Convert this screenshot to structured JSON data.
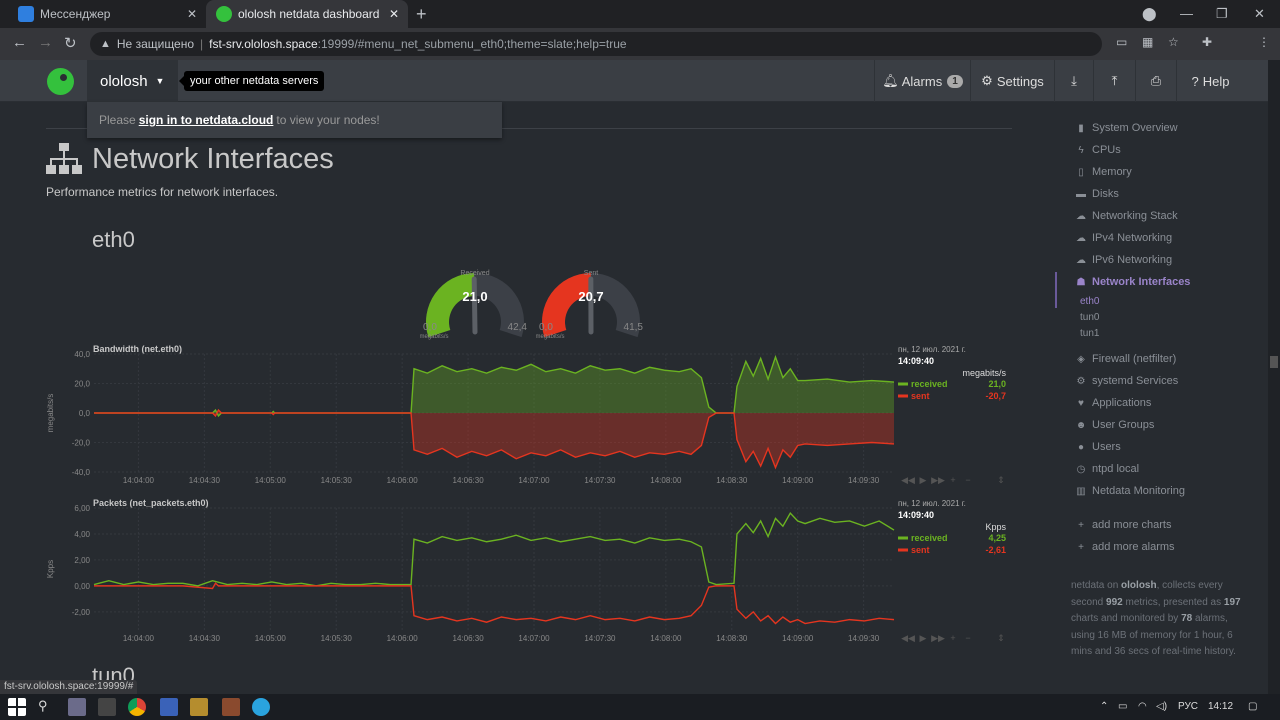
{
  "browser": {
    "tabs": [
      {
        "title": "Мессенджер",
        "active": false,
        "icon": "messenger-icon"
      },
      {
        "title": "ololosh netdata dashboard",
        "active": true,
        "icon": "netdata-icon"
      }
    ],
    "address": {
      "security_label": "Не защищено",
      "host": "fst-srv.ololosh.space",
      "path": ":19999/#menu_net_submenu_eth0;theme=slate;help=true"
    },
    "status_url": "fst-srv.ololosh.space:19999/#"
  },
  "netdata": {
    "hostname": "ololosh",
    "servers_tooltip": "your other netdata servers",
    "nav": {
      "alarms_label": "Alarms",
      "alarms_count": "1",
      "settings_label": "Settings",
      "help_label": "Help"
    },
    "cloud": {
      "prefix": "Please",
      "link": "sign in to netdata.cloud",
      "suffix": "to view your nodes!"
    },
    "section": {
      "title": "Network Interfaces",
      "description": "Performance metrics for network interfaces.",
      "subsection": "eth0",
      "next_subsection": "tun0"
    },
    "gauges": [
      {
        "label": "Received",
        "value": "21,0",
        "min": "0,0",
        "max": "42,4",
        "units": "megabits/s",
        "fraction": 0.495,
        "color": "#6bb321"
      },
      {
        "label": "Sent",
        "value": "20,7",
        "min": "0,0",
        "max": "41,5",
        "units": "megabits/s",
        "fraction": 0.499,
        "color": "#e5351f"
      }
    ],
    "sidebar": {
      "items": [
        {
          "label": "System Overview",
          "icon": "bookmark-icon"
        },
        {
          "label": "CPUs",
          "icon": "bolt-icon"
        },
        {
          "label": "Memory",
          "icon": "memory-icon"
        },
        {
          "label": "Disks",
          "icon": "hdd-icon"
        },
        {
          "label": "Networking Stack",
          "icon": "cloud-icon"
        },
        {
          "label": "IPv4 Networking",
          "icon": "cloud-icon"
        },
        {
          "label": "IPv6 Networking",
          "icon": "cloud-icon"
        },
        {
          "label": "Network Interfaces",
          "icon": "sitemap-icon",
          "active": true
        },
        {
          "label": "Firewall (netfilter)",
          "icon": "shield-icon"
        },
        {
          "label": "systemd Services",
          "icon": "cogs-icon"
        },
        {
          "label": "Applications",
          "icon": "heartbeat-icon"
        },
        {
          "label": "User Groups",
          "icon": "users-icon"
        },
        {
          "label": "Users",
          "icon": "user-icon"
        },
        {
          "label": "ntpd local",
          "icon": "clock-icon"
        },
        {
          "label": "Netdata Monitoring",
          "icon": "bar-chart-icon"
        },
        {
          "label": "add more charts",
          "icon": "plus-icon"
        },
        {
          "label": "add more alarms",
          "icon": "plus-icon"
        }
      ],
      "subitems": [
        {
          "label": "eth0",
          "active": true
        },
        {
          "label": "tun0",
          "active": false
        },
        {
          "label": "tun1",
          "active": false
        }
      ],
      "footer": {
        "t1": "netdata on",
        "host": "ololosh",
        "t2": ", collects every second",
        "metrics": "992",
        "t3": "metrics, presented as",
        "charts": "197",
        "t4": "charts and monitored by",
        "alarms": "78",
        "t5": "alarms, using 16 MB of memory for 1 hour, 6 mins and 36 secs of real-time history."
      }
    }
  },
  "taskbar": {
    "language": "РУС",
    "time": "14:12"
  },
  "chart_data": [
    {
      "type": "area",
      "title": "Bandwidth (net.eth0)",
      "ylabel": "megabits/s",
      "units": "megabits/s",
      "ylim": [
        -40,
        40
      ],
      "yticks": [
        "40,0",
        "20,0",
        "0,0",
        "-20,0",
        "-40,0"
      ],
      "xticks": [
        "14:04:00",
        "14:04:30",
        "14:05:00",
        "14:05:30",
        "14:06:00",
        "14:06:30",
        "14:07:00",
        "14:07:30",
        "14:08:00",
        "14:08:30",
        "14:09:00",
        "14:09:30"
      ],
      "date_label": "пн, 12 июл. 2021 г.",
      "time_label": "14:09:40",
      "x_start_sec": 0,
      "x_end_sec": 360,
      "series": [
        {
          "name": "received",
          "color": "#6bb321",
          "last_value": "21,0",
          "values": [
            [
              0,
              0
            ],
            [
              80,
              0
            ],
            [
              82,
              2
            ],
            [
              84,
              -2
            ],
            [
              86,
              0
            ],
            [
              120,
              0
            ],
            [
              121,
              1
            ],
            [
              122,
              0
            ],
            [
              214,
              0
            ],
            [
              216,
              30
            ],
            [
              225,
              27
            ],
            [
              235,
              32
            ],
            [
              245,
              28
            ],
            [
              255,
              30
            ],
            [
              265,
              27
            ],
            [
              275,
              31
            ],
            [
              285,
              29
            ],
            [
              295,
              33
            ],
            [
              305,
              28
            ],
            [
              315,
              30
            ],
            [
              325,
              27
            ],
            [
              335,
              32
            ],
            [
              345,
              29
            ],
            [
              355,
              30
            ],
            [
              365,
              27
            ],
            [
              375,
              31
            ],
            [
              385,
              29
            ],
            [
              395,
              28
            ],
            [
              403,
              30
            ],
            [
              410,
              24
            ],
            [
              415,
              4
            ],
            [
              420,
              0
            ],
            [
              432,
              0
            ],
            [
              434,
              18
            ],
            [
              440,
              35
            ],
            [
              445,
              25
            ],
            [
              450,
              37
            ],
            [
              455,
              23
            ],
            [
              460,
              38
            ],
            [
              465,
              24
            ],
            [
              470,
              30
            ],
            [
              475,
              22
            ],
            [
              480,
              22
            ],
            [
              495,
              23
            ],
            [
              510,
              21
            ],
            [
              525,
              22
            ],
            [
              540,
              21
            ]
          ]
        },
        {
          "name": "sent",
          "color": "#e5351f",
          "last_value": "-20,7",
          "values": [
            [
              0,
              0
            ],
            [
              80,
              0
            ],
            [
              82,
              -2
            ],
            [
              84,
              2
            ],
            [
              86,
              0
            ],
            [
              120,
              0
            ],
            [
              121,
              -1
            ],
            [
              122,
              0
            ],
            [
              214,
              0
            ],
            [
              216,
              -25
            ],
            [
              225,
              -28
            ],
            [
              235,
              -24
            ],
            [
              245,
              -30
            ],
            [
              255,
              -26
            ],
            [
              265,
              -29
            ],
            [
              275,
              -25
            ],
            [
              285,
              -31
            ],
            [
              295,
              -27
            ],
            [
              305,
              -29
            ],
            [
              315,
              -25
            ],
            [
              325,
              -30
            ],
            [
              335,
              -27
            ],
            [
              345,
              -29
            ],
            [
              355,
              -26
            ],
            [
              365,
              -30
            ],
            [
              375,
              -27
            ],
            [
              385,
              -28
            ],
            [
              395,
              -26
            ],
            [
              403,
              -28
            ],
            [
              410,
              -22
            ],
            [
              415,
              -3
            ],
            [
              420,
              0
            ],
            [
              432,
              0
            ],
            [
              434,
              -18
            ],
            [
              440,
              -33
            ],
            [
              445,
              -26
            ],
            [
              450,
              -36
            ],
            [
              455,
              -24
            ],
            [
              460,
              -37
            ],
            [
              465,
              -25
            ],
            [
              470,
              -30
            ],
            [
              475,
              -22
            ],
            [
              480,
              -21
            ],
            [
              495,
              -22
            ],
            [
              510,
              -21
            ],
            [
              525,
              -20
            ],
            [
              540,
              -21
            ]
          ]
        }
      ]
    },
    {
      "type": "line",
      "title": "Packets (net_packets.eth0)",
      "ylabel": "Kpps",
      "units": "Kpps",
      "ylim": [
        -3.4,
        6
      ],
      "yticks": [
        "6,00",
        "4,00",
        "2,00",
        "0,00",
        "-2,00"
      ],
      "xticks": [
        "14:04:00",
        "14:04:30",
        "14:05:00",
        "14:05:30",
        "14:06:00",
        "14:06:30",
        "14:07:00",
        "14:07:30",
        "14:08:00",
        "14:08:30",
        "14:09:00",
        "14:09:30"
      ],
      "date_label": "пн, 12 июл. 2021 г.",
      "time_label": "14:09:40",
      "series": [
        {
          "name": "received",
          "color": "#6bb321",
          "last_value": "4,25",
          "values": [
            [
              0,
              0.1
            ],
            [
              10,
              0.4
            ],
            [
              20,
              0.1
            ],
            [
              30,
              0.3
            ],
            [
              40,
              0.1
            ],
            [
              50,
              0.2
            ],
            [
              60,
              0.2
            ],
            [
              70,
              0.0
            ],
            [
              80,
              0.4
            ],
            [
              90,
              0.1
            ],
            [
              100,
              0.2
            ],
            [
              110,
              0.1
            ],
            [
              120,
              0.3
            ],
            [
              130,
              0.1
            ],
            [
              140,
              0.2
            ],
            [
              150,
              0.0
            ],
            [
              160,
              0.2
            ],
            [
              170,
              0.1
            ],
            [
              180,
              0.1
            ],
            [
              190,
              0.2
            ],
            [
              200,
              0.1
            ],
            [
              214,
              0.1
            ],
            [
              216,
              3.6
            ],
            [
              225,
              3.3
            ],
            [
              235,
              3.8
            ],
            [
              245,
              3.5
            ],
            [
              255,
              3.7
            ],
            [
              265,
              3.4
            ],
            [
              275,
              3.6
            ],
            [
              285,
              3.9
            ],
            [
              295,
              3.5
            ],
            [
              305,
              3.7
            ],
            [
              315,
              3.4
            ],
            [
              325,
              3.6
            ],
            [
              335,
              3.8
            ],
            [
              345,
              3.5
            ],
            [
              355,
              3.6
            ],
            [
              365,
              3.3
            ],
            [
              375,
              3.7
            ],
            [
              385,
              3.5
            ],
            [
              395,
              3.6
            ],
            [
              403,
              3.4
            ],
            [
              410,
              3.0
            ],
            [
              415,
              0.3
            ],
            [
              420,
              0.1
            ],
            [
              432,
              0.2
            ],
            [
              434,
              4.0
            ],
            [
              440,
              4.8
            ],
            [
              445,
              4.1
            ],
            [
              450,
              5.0
            ],
            [
              455,
              3.8
            ],
            [
              460,
              5.2
            ],
            [
              465,
              4.6
            ],
            [
              470,
              5.6
            ],
            [
              475,
              5.0
            ],
            [
              480,
              4.8
            ],
            [
              490,
              5.2
            ],
            [
              500,
              4.9
            ],
            [
              510,
              5.0
            ],
            [
              520,
              4.6
            ],
            [
              530,
              5.0
            ],
            [
              540,
              4.3
            ]
          ]
        },
        {
          "name": "sent",
          "color": "#e5351f",
          "last_value": "-2,61",
          "values": [
            [
              0,
              0.0
            ],
            [
              20,
              0.0
            ],
            [
              40,
              0.0
            ],
            [
              60,
              0.0
            ],
            [
              80,
              -0.2
            ],
            [
              82,
              0.2
            ],
            [
              84,
              0.0
            ],
            [
              120,
              0.0
            ],
            [
              214,
              0.0
            ],
            [
              216,
              -2.3
            ],
            [
              225,
              -2.6
            ],
            [
              235,
              -2.4
            ],
            [
              245,
              -2.7
            ],
            [
              255,
              -2.5
            ],
            [
              265,
              -2.8
            ],
            [
              275,
              -2.4
            ],
            [
              285,
              -2.6
            ],
            [
              295,
              -2.5
            ],
            [
              305,
              -2.7
            ],
            [
              315,
              -2.4
            ],
            [
              325,
              -2.6
            ],
            [
              335,
              -2.3
            ],
            [
              345,
              -2.6
            ],
            [
              355,
              -2.5
            ],
            [
              365,
              -2.7
            ],
            [
              375,
              -2.4
            ],
            [
              385,
              -2.6
            ],
            [
              395,
              -2.5
            ],
            [
              403,
              -2.3
            ],
            [
              410,
              -1.5
            ],
            [
              415,
              -0.1
            ],
            [
              420,
              0.0
            ],
            [
              432,
              0.0
            ],
            [
              434,
              -1.8
            ],
            [
              440,
              -2.5
            ],
            [
              445,
              -2.0
            ],
            [
              450,
              -2.7
            ],
            [
              455,
              -2.3
            ],
            [
              460,
              -2.9
            ],
            [
              465,
              -2.4
            ],
            [
              470,
              -2.8
            ],
            [
              475,
              -2.6
            ],
            [
              480,
              -2.9
            ],
            [
              490,
              -2.7
            ],
            [
              500,
              -2.8
            ],
            [
              510,
              -2.6
            ],
            [
              520,
              -2.7
            ],
            [
              530,
              -2.5
            ],
            [
              540,
              -2.6
            ]
          ]
        }
      ]
    }
  ]
}
